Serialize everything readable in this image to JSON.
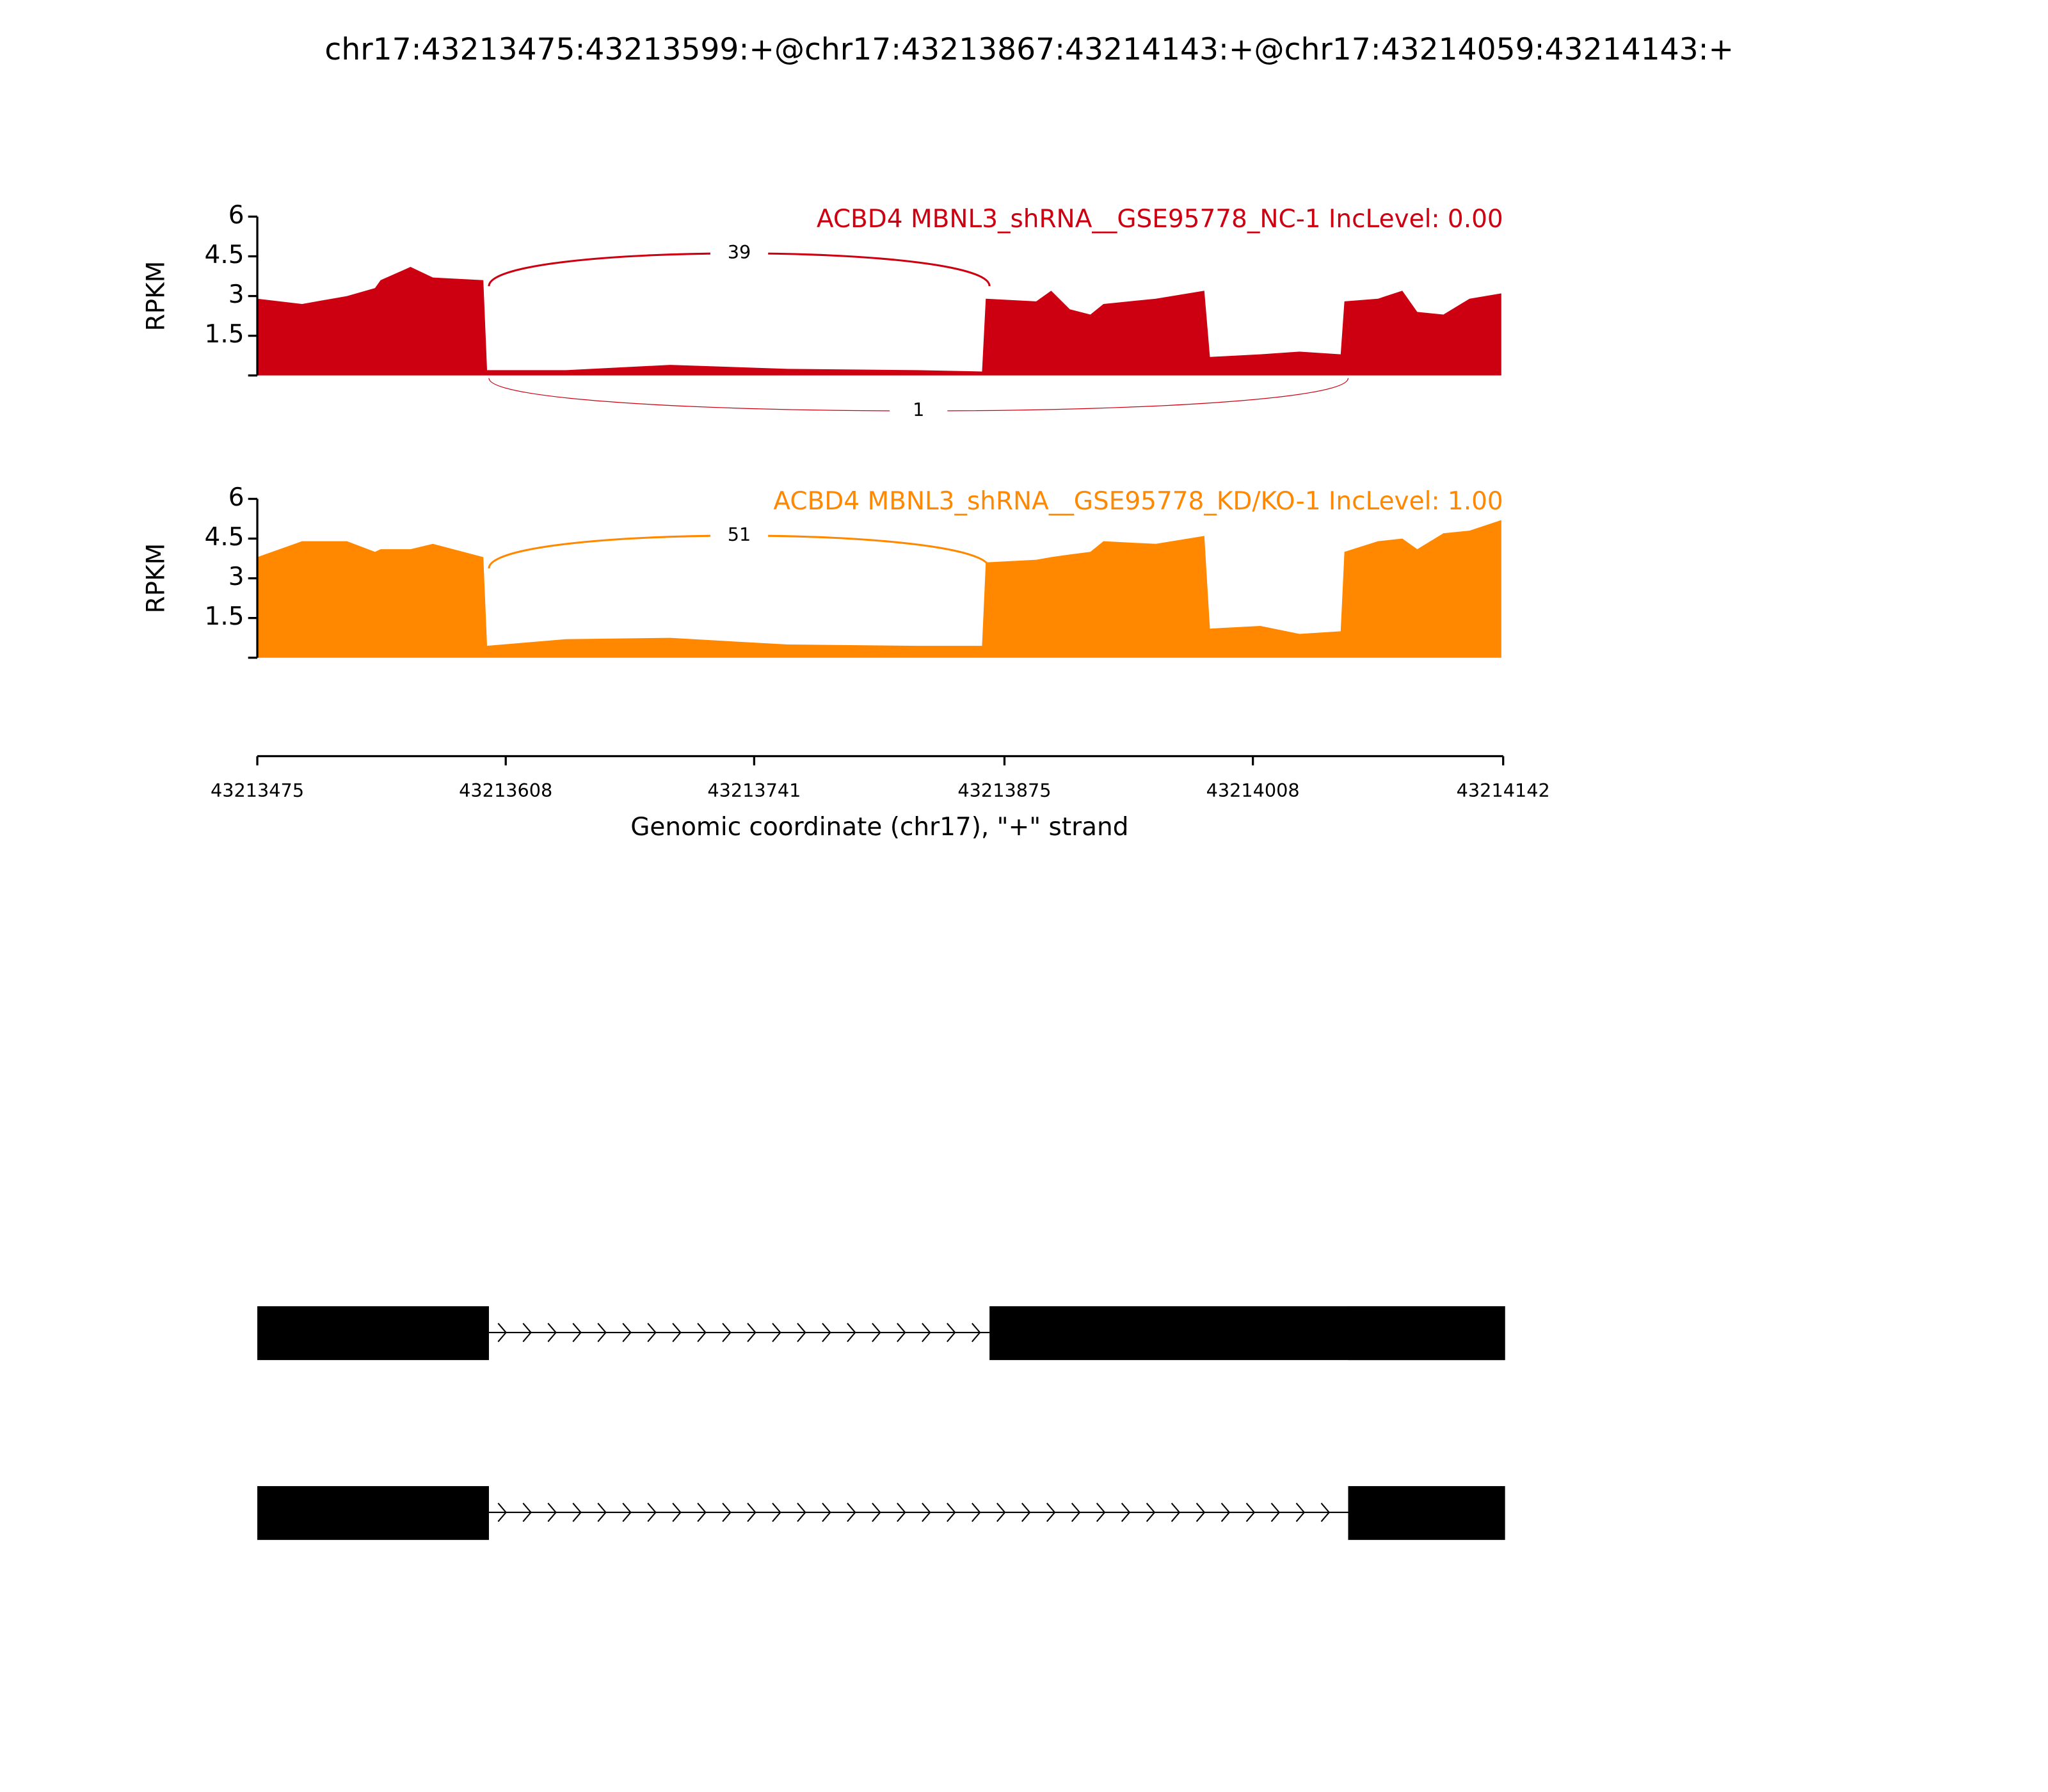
{
  "chart_data": {
    "type": "sashimi",
    "title": "chr17:43213475:43213599:+@chr17:43213867:43214143:+@chr17:43214059:43214143:+",
    "xlabel": "Genomic coordinate (chr17), \"+\" strand",
    "xlim": [
      43213475,
      43214142
    ],
    "xticks": [
      43213475,
      43213608,
      43213741,
      43213875,
      43214008,
      43214142
    ],
    "x": [
      43213475,
      43213499,
      43213523,
      43213538,
      43213541,
      43213557,
      43213569,
      43213596,
      43213598,
      43213640,
      43213696,
      43213759,
      43213829,
      43213863,
      43213865,
      43213892,
      43213900,
      43213910,
      43213921,
      43213928,
      43213956,
      43213982,
      43213985,
      43214012,
      43214033,
      43214055,
      43214057,
      43214075,
      43214088,
      43214096,
      43214110,
      43214124,
      43214141
    ],
    "tracks": [
      {
        "label": "ACBD4 MBNL3_shRNA__GSE95778_NC-1 IncLevel: 0.00",
        "ylabel": "RPKM",
        "color": "#cc0011",
        "ylim": [
          0,
          6
        ],
        "yticks": [
          1.5,
          3,
          4.5,
          6
        ],
        "values": [
          2.9,
          2.7,
          3.0,
          3.3,
          3.6,
          4.1,
          3.7,
          3.6,
          0.2,
          0.2,
          0.4,
          0.25,
          0.2,
          0.15,
          2.9,
          2.8,
          3.2,
          2.5,
          2.3,
          2.7,
          2.9,
          3.2,
          0.7,
          0.8,
          0.9,
          0.8,
          2.8,
          2.9,
          3.2,
          2.4,
          2.3,
          2.9,
          3.1
        ],
        "junctions": [
          {
            "count": 39,
            "start": 43213599,
            "end": 43213867,
            "side": "above"
          },
          {
            "count": 1,
            "start": 43213599,
            "end": 43214059,
            "side": "below"
          }
        ]
      },
      {
        "label": "ACBD4 MBNL3_shRNA__GSE95778_KD/KO-1 IncLevel: 1.00",
        "ylabel": "RPKM",
        "color": "#ff8800",
        "ylim": [
          0,
          6
        ],
        "yticks": [
          1.5,
          3,
          4.5,
          6
        ],
        "values": [
          3.8,
          4.4,
          4.4,
          4.0,
          4.1,
          4.1,
          4.3,
          3.8,
          0.45,
          0.7,
          0.75,
          0.5,
          0.45,
          0.45,
          3.6,
          3.7,
          3.8,
          3.9,
          4.0,
          4.4,
          4.3,
          4.6,
          1.1,
          1.2,
          0.9,
          1.0,
          4.0,
          4.4,
          4.5,
          4.1,
          4.7,
          4.8,
          5.2
        ],
        "junctions": [
          {
            "count": 51,
            "start": 43213599,
            "end": 43213867,
            "side": "above"
          }
        ]
      }
    ],
    "transcripts": [
      [
        [
          43213475,
          43213599
        ],
        [
          43213867,
          43214143
        ],
        [
          43214059,
          43214143
        ]
      ],
      [
        [
          43213475,
          43213599
        ],
        [
          43214059,
          43214143
        ]
      ]
    ]
  }
}
